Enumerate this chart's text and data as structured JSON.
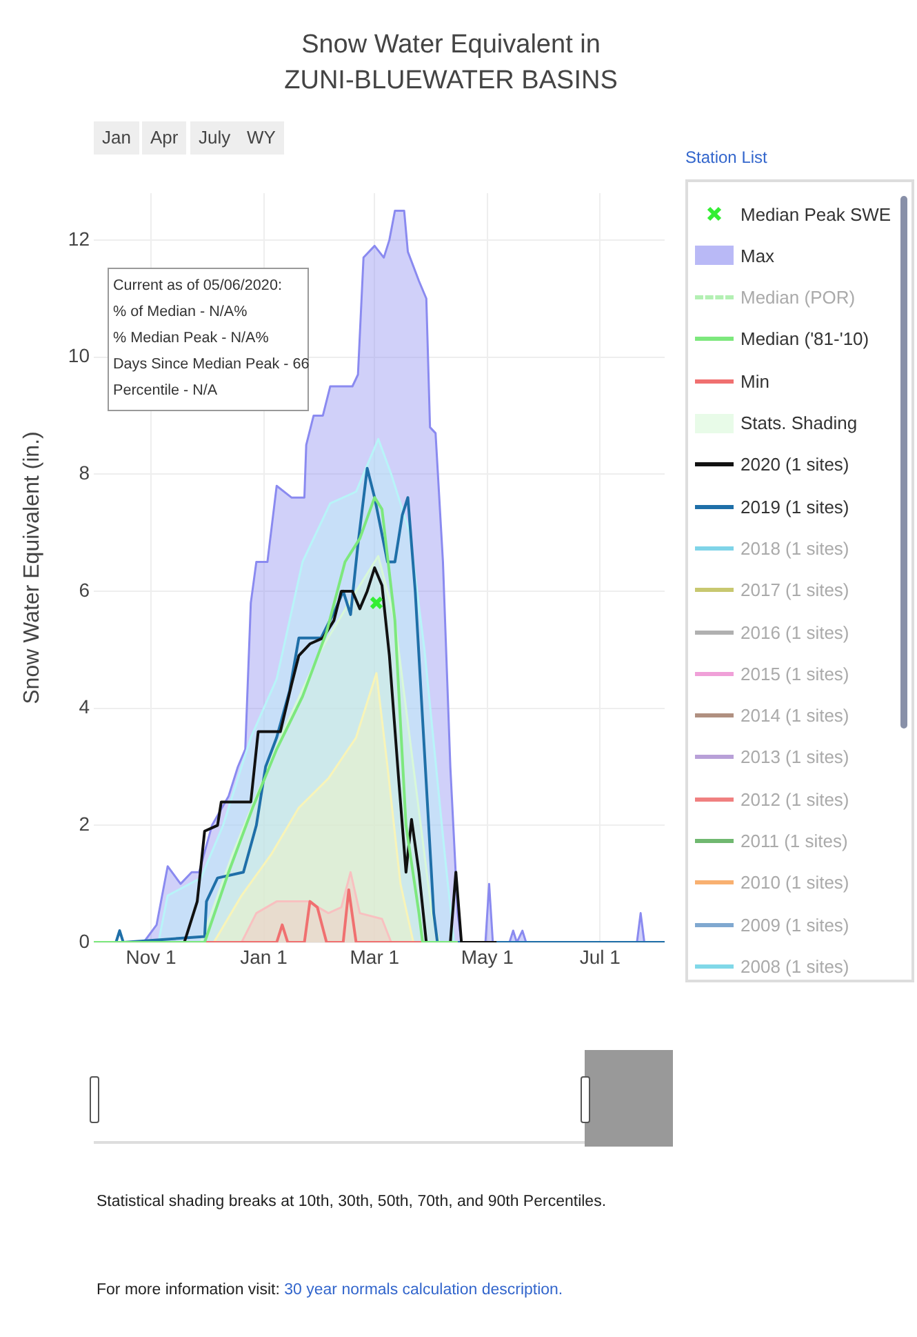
{
  "chart_data": {
    "type": "line",
    "title": "Snow Water Equivalent in ZUNI-BLUEWATER BASINS",
    "ylabel": "Snow Water Equivalent (in.)",
    "xlim": [
      "2019-10-01",
      "2020-08-05"
    ],
    "xticks": [
      {
        "value": "2019-11-01",
        "label": "Nov 1"
      },
      {
        "value": "2020-01-01",
        "label": "Jan 1"
      },
      {
        "value": "2020-03-01",
        "label": "Mar 1"
      },
      {
        "value": "2020-05-01",
        "label": "May 1"
      },
      {
        "value": "2020-07-01",
        "label": "Jul 1"
      }
    ],
    "ylim": [
      0,
      12.8
    ],
    "yticks": [
      0,
      2,
      4,
      6,
      8,
      10,
      12
    ],
    "grid": true,
    "legend": "right",
    "annotations": [
      "Jan",
      "Apr",
      "July",
      "WY",
      "Station List",
      "Current as of 05/06/2020:",
      "% of Median - N/A%",
      "% Median Peak - N/A%",
      "Days Since Median Peak - 66",
      "Percentile - N/A",
      "Statistical shading breaks at 10th, 30th, 50th, 70th, and 90th Percentiles.",
      "For more information visit:",
      "30 year normals calculation description."
    ],
    "series": [
      {
        "name": "Median Peak SWE",
        "type": "scatter",
        "marker": "cross",
        "color": "#33ee33",
        "x": [
          "2020-03-02"
        ],
        "values": [
          5.8
        ]
      },
      {
        "name": "Max",
        "type": "area",
        "color": "#8a8af0",
        "x": [
          "2019-10-01",
          "2019-10-28",
          "2019-11-04",
          "2019-11-10",
          "2019-11-17",
          "2019-11-23",
          "2019-11-27",
          "2019-12-04",
          "2019-12-13",
          "2019-12-18",
          "2019-12-22",
          "2019-12-25",
          "2019-12-28",
          "2020-01-03",
          "2020-01-08",
          "2020-01-16",
          "2020-01-23",
          "2020-01-24",
          "2020-01-28",
          "2020-02-02",
          "2020-02-06",
          "2020-02-18",
          "2020-02-21",
          "2020-02-24",
          "2020-03-01",
          "2020-03-06",
          "2020-03-09",
          "2020-03-12",
          "2020-03-17",
          "2020-03-19",
          "2020-03-25",
          "2020-03-29",
          "2020-03-31",
          "2020-04-03",
          "2020-04-07",
          "2020-04-11",
          "2020-04-15",
          "2020-04-17",
          "2020-04-30",
          "2020-05-02",
          "2020-05-04",
          "2020-05-13",
          "2020-05-15",
          "2020-05-17",
          "2020-05-20",
          "2020-05-22",
          "2020-07-21",
          "2020-07-23",
          "2020-07-25",
          "2020-08-05"
        ],
        "values": [
          0,
          0,
          0.3,
          1.3,
          1.0,
          1.2,
          1.2,
          2.0,
          2.5,
          3.0,
          3.3,
          5.8,
          6.5,
          6.5,
          7.8,
          7.6,
          7.6,
          8.5,
          9.0,
          9.0,
          9.5,
          9.5,
          9.7,
          11.7,
          11.9,
          11.7,
          12.0,
          12.5,
          12.5,
          11.8,
          11.3,
          11.0,
          8.8,
          8.7,
          6.5,
          3.0,
          0.5,
          0,
          0,
          1.0,
          0,
          0,
          0.2,
          0,
          0.2,
          0,
          0,
          0.5,
          0,
          0
        ]
      },
      {
        "type": "area",
        "color": "#b8f4f8",
        "x": [
          "2019-11-05",
          "2019-11-10",
          "2019-11-28",
          "2019-12-10",
          "2019-12-25",
          "2020-01-08",
          "2020-01-15",
          "2020-01-22",
          "2020-02-06",
          "2020-02-20",
          "2020-03-03",
          "2020-03-10",
          "2020-03-20",
          "2020-03-28",
          "2020-04-08",
          "2020-04-13"
        ],
        "values": [
          0,
          0.8,
          1.1,
          2.0,
          3.5,
          4.5,
          5.5,
          6.5,
          7.5,
          7.7,
          8.6,
          8.0,
          7.0,
          5.0,
          1.5,
          0
        ]
      },
      {
        "name": "Median (POR)",
        "type": "line",
        "line_style": "dashed",
        "color": "#b3f0b3"
      },
      {
        "name": "Median ('81-'10)",
        "type": "line",
        "color": "#7de87d",
        "x": [
          "2019-10-01",
          "2019-11-30",
          "2019-12-13",
          "2019-12-26",
          "2020-01-08",
          "2020-01-22",
          "2020-02-04",
          "2020-02-14",
          "2020-02-22",
          "2020-03-01",
          "2020-03-05",
          "2020-03-12",
          "2020-03-18",
          "2020-03-25",
          "2020-03-27",
          "2020-04-15"
        ],
        "values": [
          0,
          0,
          1.2,
          2.3,
          3.3,
          4.2,
          5.3,
          6.5,
          6.9,
          7.6,
          7.4,
          5.5,
          2.0,
          0.5,
          0,
          0
        ]
      },
      {
        "name": "Min",
        "type": "line",
        "color": "#f07070",
        "x": [
          "2019-11-30",
          "2020-01-08",
          "2020-01-11",
          "2020-01-14",
          "2020-01-23",
          "2020-01-26",
          "2020-01-30",
          "2020-02-04",
          "2020-02-13",
          "2020-02-16",
          "2020-02-20",
          "2020-04-15"
        ],
        "values": [
          0,
          0,
          0.3,
          0,
          0,
          0.7,
          0.6,
          0,
          0,
          0.9,
          0,
          0
        ]
      },
      {
        "name": "Stats. Shading",
        "type": "area",
        "color": "#d8f8d8",
        "x": [
          "2019-11-28",
          "2019-12-15",
          "2020-01-10",
          "2020-02-01",
          "2020-02-20",
          "2020-03-03",
          "2020-03-12",
          "2020-03-22",
          "2020-04-01",
          "2020-04-05"
        ],
        "values": [
          0,
          1.5,
          3.5,
          5.0,
          6.0,
          6.6,
          5.5,
          3.0,
          0.5,
          0
        ]
      },
      {
        "type": "area",
        "color": "#f8f4b8",
        "x": [
          "2019-12-05",
          "2019-12-20",
          "2020-01-05",
          "2020-01-20",
          "2020-02-05",
          "2020-02-20",
          "2020-03-02",
          "2020-03-08",
          "2020-03-15",
          "2020-03-22"
        ],
        "values": [
          0,
          0.8,
          1.5,
          2.3,
          2.8,
          3.5,
          4.6,
          3.0,
          1.0,
          0
        ]
      },
      {
        "type": "area",
        "color": "#f8c0c0",
        "x": [
          "2019-12-20",
          "2019-12-28",
          "2020-01-08",
          "2020-01-25",
          "2020-02-05",
          "2020-02-12",
          "2020-02-17",
          "2020-02-22",
          "2020-03-05",
          "2020-03-10"
        ],
        "values": [
          0,
          0.5,
          0.7,
          0.7,
          0.5,
          0.6,
          1.2,
          0.5,
          0.4,
          0
        ]
      },
      {
        "name": "2020 (1 sites)",
        "type": "line",
        "color": "#111111",
        "x": [
          "2019-10-01",
          "2019-11-19",
          "2019-11-22",
          "2019-11-26",
          "2019-11-30",
          "2019-12-07",
          "2019-12-09",
          "2019-12-25",
          "2019-12-29",
          "2020-01-10",
          "2020-01-16",
          "2020-01-20",
          "2020-01-26",
          "2020-02-02",
          "2020-02-08",
          "2020-02-12",
          "2020-02-18",
          "2020-02-22",
          "2020-02-26",
          "2020-03-01",
          "2020-03-05",
          "2020-03-09",
          "2020-03-14",
          "2020-03-18",
          "2020-03-21",
          "2020-03-25",
          "2020-03-29",
          "2020-04-11",
          "2020-04-14",
          "2020-04-17",
          "2020-05-06"
        ],
        "values": [
          0,
          0,
          0.3,
          0.7,
          1.9,
          2.0,
          2.4,
          2.4,
          3.6,
          3.6,
          4.4,
          4.9,
          5.1,
          5.2,
          5.5,
          6.0,
          6.0,
          5.7,
          6.0,
          6.4,
          6.1,
          4.9,
          2.8,
          1.2,
          2.1,
          1.2,
          0,
          0,
          1.2,
          0,
          0
        ]
      },
      {
        "name": "2019 (1 sites)",
        "type": "line",
        "color": "#1f6fa8",
        "x": [
          "2019-10-01",
          "2019-10-13",
          "2019-10-15",
          "2019-10-17",
          "2019-11-30",
          "2019-12-01",
          "2019-12-07",
          "2019-12-21",
          "2019-12-28",
          "2020-01-02",
          "2020-01-08",
          "2020-01-15",
          "2020-01-20",
          "2020-02-01",
          "2020-02-09",
          "2020-02-13",
          "2020-02-17",
          "2020-02-21",
          "2020-02-26",
          "2020-03-01",
          "2020-03-08",
          "2020-03-12",
          "2020-03-16",
          "2020-03-19",
          "2020-03-23",
          "2020-04-02",
          "2020-04-04",
          "2020-08-05"
        ],
        "values": [
          0,
          0,
          0.2,
          0,
          0.1,
          0.7,
          1.1,
          1.2,
          2.0,
          3.0,
          3.5,
          4.3,
          5.2,
          5.2,
          5.7,
          6.0,
          5.6,
          6.8,
          8.1,
          7.6,
          6.5,
          6.5,
          7.3,
          7.6,
          6.0,
          0.5,
          0,
          0
        ]
      },
      {
        "name": "2018 (1 sites)",
        "type": "line",
        "color": "#7fd4e8"
      },
      {
        "name": "2017 (1 sites)",
        "type": "line",
        "color": "#c8c870"
      },
      {
        "name": "2016 (1 sites)",
        "type": "line",
        "color": "#b0b0b0"
      },
      {
        "name": "2015 (1 sites)",
        "type": "line",
        "color": "#f0a0d8"
      },
      {
        "name": "2014 (1 sites)",
        "type": "line",
        "color": "#b09080"
      },
      {
        "name": "2013 (1 sites)",
        "type": "line",
        "color": "#b8a0d8"
      },
      {
        "name": "2012 (1 sites)",
        "type": "line",
        "color": "#f08080"
      },
      {
        "name": "2011 (1 sites)",
        "type": "line",
        "color": "#70b870"
      },
      {
        "name": "2010 (1 sites)",
        "type": "line",
        "color": "#f8b070"
      },
      {
        "name": "2009 (1 sites)",
        "type": "line",
        "color": "#80a8d0"
      },
      {
        "name": "2008 (1 sites)",
        "type": "line",
        "color": "#80d8e8"
      }
    ]
  }
}
